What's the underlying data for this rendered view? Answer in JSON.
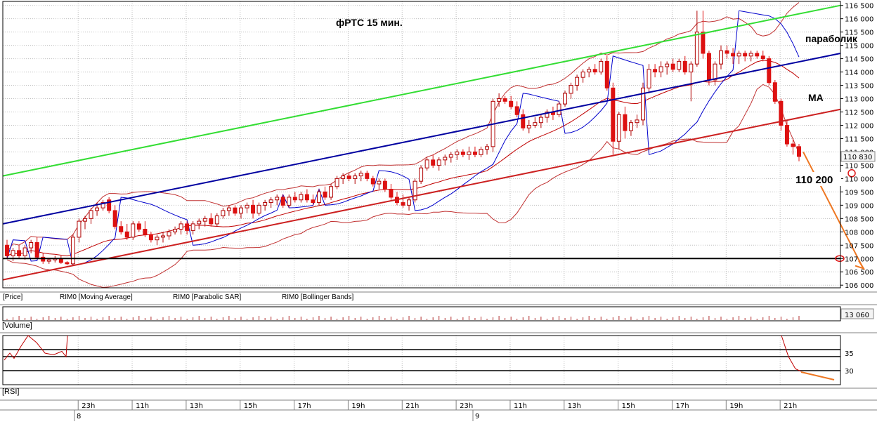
{
  "chart_data": {
    "type": "candlestick",
    "title": "фРТС   15 мин.",
    "y_range": [
      105900,
      116650
    ],
    "y_ticks": [
      "116 500",
      "116 000",
      "115 500",
      "115 000",
      "114 500",
      "114 000",
      "113 500",
      "113 000",
      "112 500",
      "112 000",
      "111 500",
      "111 000",
      "110 500",
      "110 000",
      "109 500",
      "109 000",
      "108 500",
      "108 000",
      "107 500",
      "107 000",
      "106 500",
      "106 000"
    ],
    "y_tick_values": [
      116500,
      116000,
      115500,
      115000,
      114500,
      114000,
      113500,
      113000,
      112500,
      112000,
      111500,
      111000,
      110500,
      110000,
      109500,
      109000,
      108500,
      108000,
      107500,
      107000,
      106500,
      106000
    ],
    "last_price_label": "110 830",
    "last_price": 110830,
    "time_labels": [
      "23h",
      "11h",
      "13h",
      "15h",
      "17h",
      "19h",
      "21h",
      "23h",
      "11h",
      "13h",
      "15h",
      "17h",
      "19h",
      "21h"
    ],
    "date_labels": [
      "8",
      "9"
    ],
    "candles": [
      [
        107500,
        107700,
        107000,
        107100
      ],
      [
        107100,
        107400,
        106900,
        107300
      ],
      [
        107300,
        107500,
        107000,
        107100
      ],
      [
        107100,
        107500,
        106950,
        107400
      ],
      [
        107400,
        107700,
        107200,
        107600
      ],
      [
        107600,
        107800,
        107000,
        107050
      ],
      [
        107050,
        107200,
        106800,
        106900
      ],
      [
        106900,
        107000,
        106800,
        106950
      ],
      [
        106950,
        107100,
        106850,
        107000
      ],
      [
        107000,
        107100,
        106800,
        106850
      ],
      [
        106850,
        106900,
        106750,
        106800
      ],
      [
        106800,
        107900,
        106750,
        107800
      ],
      [
        107800,
        108500,
        107600,
        108400
      ],
      [
        108400,
        108600,
        108100,
        108500
      ],
      [
        108500,
        108900,
        108300,
        108800
      ],
      [
        108800,
        109100,
        108600,
        108900
      ],
      [
        108900,
        109200,
        108800,
        109100
      ],
      [
        109200,
        109300,
        108700,
        108800
      ],
      [
        108800,
        109000,
        108100,
        108200
      ],
      [
        108200,
        108400,
        107900,
        108000
      ],
      [
        108000,
        108300,
        107700,
        107800
      ],
      [
        107800,
        108400,
        107700,
        108300
      ],
      [
        108300,
        108400,
        108000,
        108100
      ],
      [
        108100,
        108400,
        107800,
        107900
      ],
      [
        107900,
        108000,
        107600,
        107700
      ],
      [
        107700,
        107900,
        107500,
        107800
      ],
      [
        107800,
        108000,
        107600,
        107850
      ],
      [
        107850,
        108100,
        107700,
        108000
      ],
      [
        108000,
        108200,
        107900,
        108100
      ],
      [
        108100,
        108400,
        107900,
        108300
      ],
      [
        108300,
        108400,
        107900,
        108050
      ],
      [
        108050,
        108400,
        107900,
        108300
      ],
      [
        108300,
        108500,
        108100,
        108400
      ],
      [
        108400,
        108600,
        108200,
        108500
      ],
      [
        108500,
        108700,
        108200,
        108300
      ],
      [
        108300,
        108700,
        108200,
        108600
      ],
      [
        108600,
        108900,
        108500,
        108800
      ],
      [
        108800,
        109000,
        108600,
        108900
      ],
      [
        108900,
        109000,
        108600,
        108700
      ],
      [
        108700,
        109000,
        108500,
        108900
      ],
      [
        108900,
        109100,
        108700,
        109000
      ],
      [
        109000,
        109200,
        108500,
        108700
      ],
      [
        108700,
        109100,
        108600,
        109000
      ],
      [
        109000,
        109200,
        108800,
        109100
      ],
      [
        109100,
        109300,
        108900,
        109200
      ],
      [
        109200,
        109400,
        109000,
        109300
      ],
      [
        109300,
        109400,
        108900,
        109000
      ],
      [
        109000,
        109400,
        108900,
        109300
      ],
      [
        109300,
        109500,
        109100,
        109200
      ],
      [
        109200,
        109500,
        109100,
        109400
      ],
      [
        109400,
        109600,
        109100,
        109200
      ],
      [
        109200,
        109400,
        109000,
        109100
      ],
      [
        109100,
        109600,
        109000,
        109500
      ],
      [
        109500,
        109700,
        109200,
        109300
      ],
      [
        109300,
        109800,
        109200,
        109700
      ],
      [
        109700,
        110100,
        109600,
        110000
      ],
      [
        110000,
        110200,
        109800,
        110100
      ],
      [
        110100,
        110200,
        109900,
        110000
      ],
      [
        110000,
        110200,
        109800,
        110100
      ],
      [
        110100,
        110300,
        109900,
        110200
      ],
      [
        110200,
        110300,
        109900,
        110000
      ],
      [
        110000,
        110100,
        109700,
        109800
      ],
      [
        109800,
        110000,
        109600,
        109900
      ],
      [
        109900,
        110000,
        109500,
        109600
      ],
      [
        109600,
        109800,
        109200,
        109300
      ],
      [
        109300,
        109500,
        109000,
        109100
      ],
      [
        109100,
        109400,
        108900,
        109000
      ],
      [
        109000,
        109300,
        108800,
        109200
      ],
      [
        109200,
        110000,
        109100,
        109900
      ],
      [
        109900,
        110500,
        109800,
        110400
      ],
      [
        110400,
        110800,
        110300,
        110700
      ],
      [
        110700,
        110900,
        110400,
        110500
      ],
      [
        110500,
        110800,
        110300,
        110700
      ],
      [
        110700,
        110900,
        110500,
        110800
      ],
      [
        110800,
        111000,
        110600,
        110900
      ],
      [
        110900,
        111100,
        110700,
        111000
      ],
      [
        111000,
        111100,
        110800,
        110900
      ],
      [
        110900,
        111200,
        110700,
        111000
      ],
      [
        111000,
        111200,
        110800,
        110900
      ],
      [
        110900,
        111200,
        110800,
        111100
      ],
      [
        111100,
        111300,
        110900,
        111200
      ],
      [
        111200,
        113000,
        111000,
        112900
      ],
      [
        112900,
        113200,
        112700,
        113000
      ],
      [
        113000,
        113100,
        112800,
        112900
      ],
      [
        112900,
        113100,
        112600,
        112700
      ],
      [
        112700,
        112900,
        112300,
        112400
      ],
      [
        112400,
        112600,
        111800,
        111900
      ],
      [
        111900,
        112200,
        111700,
        112000
      ],
      [
        112000,
        112300,
        111900,
        112100
      ],
      [
        112100,
        112400,
        111900,
        112300
      ],
      [
        112300,
        112600,
        112100,
        112500
      ],
      [
        112500,
        112700,
        112200,
        112400
      ],
      [
        112400,
        112900,
        112300,
        112800
      ],
      [
        112800,
        113300,
        112700,
        113200
      ],
      [
        113200,
        113600,
        113000,
        113500
      ],
      [
        113500,
        113900,
        113300,
        113800
      ],
      [
        113800,
        114100,
        113600,
        114000
      ],
      [
        114000,
        114200,
        113800,
        114100
      ],
      [
        114100,
        114300,
        113900,
        114000
      ],
      [
        114000,
        114500,
        113900,
        114400
      ],
      [
        114400,
        114600,
        113300,
        113400
      ],
      [
        113400,
        113600,
        110900,
        111400
      ],
      [
        111400,
        112500,
        111100,
        112400
      ],
      [
        112400,
        112700,
        111500,
        111800
      ],
      [
        111800,
        112200,
        111600,
        112100
      ],
      [
        112100,
        112400,
        111900,
        112200
      ],
      [
        112200,
        113600,
        112000,
        113400
      ],
      [
        113400,
        114300,
        113200,
        114100
      ],
      [
        114100,
        114300,
        113800,
        114000
      ],
      [
        114000,
        114400,
        113800,
        114200
      ],
      [
        114200,
        114400,
        113900,
        114300
      ],
      [
        114300,
        114500,
        114000,
        114100
      ],
      [
        114100,
        114500,
        114000,
        114400
      ],
      [
        114400,
        114600,
        113900,
        114000
      ],
      [
        114000,
        114400,
        112900,
        114300
      ],
      [
        114300,
        116300,
        114200,
        115500
      ],
      [
        115500,
        116300,
        114500,
        114700
      ],
      [
        114700,
        114800,
        113500,
        113700
      ],
      [
        113700,
        114400,
        113500,
        114300
      ],
      [
        114300,
        115000,
        114100,
        114800
      ],
      [
        114800,
        115000,
        114500,
        114700
      ],
      [
        114700,
        114900,
        114300,
        114600
      ],
      [
        114600,
        114800,
        114300,
        114700
      ],
      [
        114700,
        114800,
        114400,
        114600
      ],
      [
        114600,
        114800,
        114400,
        114700
      ],
      [
        114700,
        114800,
        114500,
        114600
      ],
      [
        114600,
        114800,
        114400,
        114500
      ],
      [
        114500,
        114600,
        113500,
        113600
      ],
      [
        113600,
        113700,
        112800,
        112900
      ],
      [
        112900,
        113000,
        111800,
        112000
      ],
      [
        112000,
        112200,
        111200,
        111300
      ],
      [
        111300,
        111500,
        110900,
        111200
      ],
      [
        111200,
        111300,
        110650,
        110830
      ]
    ],
    "overlay_lines": [
      {
        "name": "green_channel",
        "color": "#33dd33",
        "x": [
          0,
          1
        ],
        "y": [
          110100,
          116500
        ]
      },
      {
        "name": "blue_trend",
        "color": "#0000a0",
        "x": [
          0,
          1
        ],
        "y": [
          108300,
          114700
        ]
      },
      {
        "name": "red_trend",
        "color": "#cc2020",
        "x": [
          0,
          1
        ],
        "y": [
          106200,
          112600
        ]
      },
      {
        "name": "black_level",
        "color": "#000000",
        "x": [
          0,
          1
        ],
        "y": [
          107000,
          107000
        ]
      },
      {
        "name": "grey_level",
        "color": "#888888",
        "x": [
          0.947,
          1
        ],
        "y": [
          110200,
          110200
        ]
      }
    ],
    "annotations": {
      "parabolic": "параболик",
      "ma": "МА",
      "level": "110 200"
    },
    "legend": {
      "price": "[Price]",
      "ma": "RIM0 [Moving Average]",
      "sar": "RIM0 [Parabolic SAR]",
      "bb": "RIM0 [Bollinger Bands]"
    },
    "volume": {
      "label": "[Volume]",
      "last": "13 060"
    },
    "rsi": {
      "label": "[RSI]",
      "ticks": [
        "35",
        "30"
      ],
      "tick_values": [
        35,
        30
      ],
      "levels": [
        36,
        34,
        30
      ],
      "y_range": [
        26,
        40
      ]
    }
  },
  "colors": {
    "up": "#ffffff",
    "down": "#dd1111",
    "ma": "#c00000",
    "bb": "#c03030",
    "sar": "#0000cc",
    "arrow": "#ee7722",
    "grid": "#c0c0c0"
  }
}
